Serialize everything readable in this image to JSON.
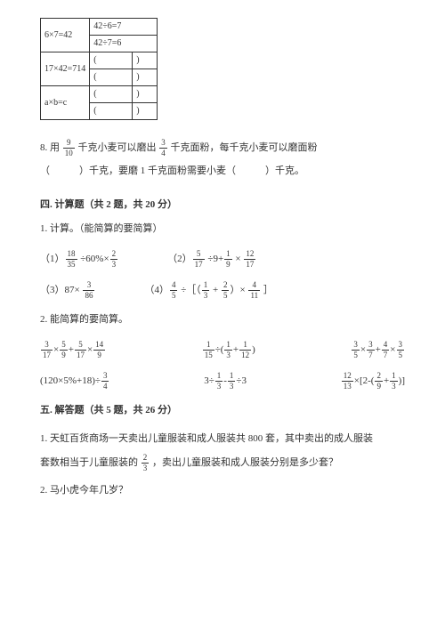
{
  "table": {
    "r1c1": "6×7=42",
    "r1c2": "42÷6=7",
    "r2c2": "42÷7=6",
    "r3c1": "17×42=714",
    "r3c2": "(",
    "r3c3": ")",
    "r4c2": "(",
    "r4c3": ")",
    "r5c1": "a×b=c",
    "r5c2": "(",
    "r5c3": ")",
    "r6c2": "(",
    "r6c3": ")"
  },
  "q8": {
    "prefix": "8. 用",
    "f1n": "9",
    "f1d": "10",
    "mid1": "千克小麦可以磨出",
    "f2n": "3",
    "f2d": "4",
    "mid2": "千克面粉，每千克小麦可以磨面粉",
    "blank1": "（　　　）千克，要磨 1 千克面粉需要小麦（　　　）千克。"
  },
  "sec4": {
    "title": "四. 计算题（共 2 题，共 20 分）",
    "sub1": "1. 计算。（能简算的要简算）",
    "p1_label": "（1）",
    "p1_f1n": "18",
    "p1_f1d": "35",
    "p1_mid": " ÷60%×",
    "p1_f2n": "2",
    "p1_f2d": "3",
    "p2_label": "（2）",
    "p2_f1n": "5",
    "p2_f1d": "17",
    "p2_mid1": " ÷9+",
    "p2_f2n": "1",
    "p2_f2d": "9",
    "p2_mid2": " × ",
    "p2_f3n": "12",
    "p2_f3d": "17",
    "p3_label": "（3）87× ",
    "p3_f1n": "3",
    "p3_f1d": "86",
    "p4_label": "（4）",
    "p4_f1n": "4",
    "p4_f1d": "5",
    "p4_mid1": " ÷［（",
    "p4_f2n": "1",
    "p4_f2d": "3",
    "p4_mid2": " + ",
    "p4_f3n": "2",
    "p4_f3d": "5",
    "p4_mid3": "）× ",
    "p4_f4n": "4",
    "p4_f4d": "11",
    "p4_end": " ］",
    "sub2": "2. 能简算的要简算。",
    "e1_f1n": "3",
    "e1_f1d": "17",
    "e1_m1": "×",
    "e1_f2n": "5",
    "e1_f2d": "9",
    "e1_m2": "+",
    "e1_f3n": "5",
    "e1_f3d": "17",
    "e1_m3": "×",
    "e1_f4n": "14",
    "e1_f4d": "9",
    "e2_f1n": "1",
    "e2_f1d": "15",
    "e2_m1": "÷(",
    "e2_f2n": "1",
    "e2_f2d": "3",
    "e2_m2": "+",
    "e2_f3n": "1",
    "e2_f3d": "12",
    "e2_end": ")",
    "e3_f1n": "3",
    "e3_f1d": "5",
    "e3_m1": "×",
    "e3_f2n": "3",
    "e3_f2d": "7",
    "e3_m2": "+",
    "e3_f3n": "4",
    "e3_f3d": "7",
    "e3_m3": "×",
    "e3_f4n": "3",
    "e3_f4d": "5",
    "e4_pre": "(120×5%+18)÷",
    "e4_f1n": "3",
    "e4_f1d": "4",
    "e5_pre": "3÷",
    "e5_f1n": "1",
    "e5_f1d": "3",
    "e5_m1": "-",
    "e5_f2n": "1",
    "e5_f2d": "3",
    "e5_end": "÷3",
    "e6_f1n": "12",
    "e6_f1d": "13",
    "e6_m1": "×[2-(",
    "e6_f2n": "2",
    "e6_f2d": "9",
    "e6_m2": "+",
    "e6_f3n": "1",
    "e6_f3d": "3",
    "e6_end": ")]"
  },
  "sec5": {
    "title": "五. 解答题（共 5 题，共 26 分）",
    "q1a": "1. 天虹百货商场一天卖出儿童服装和成人服装共 800 套，其中卖出的成人服装",
    "q1b_pre": "套数相当于儿童服装的",
    "q1_fn": "2",
    "q1_fd": "3",
    "q1b_post": "，卖出儿童服装和成人服装分别是多少套？",
    "q2": "2. 马小虎今年几岁？"
  }
}
